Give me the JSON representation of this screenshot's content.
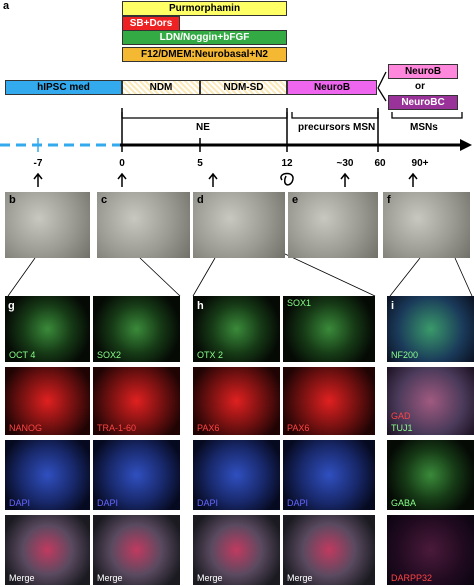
{
  "panel_a": {
    "label": "a",
    "treatments": [
      "Purmorphamin",
      "SB+Dors",
      "LDN/Noggin+bFGF",
      "F12/DMEM:Neurobasal+N2"
    ],
    "stages": [
      "hIPSC med",
      "NDM",
      "NDM-SD",
      "NeuroB"
    ],
    "alternatives": [
      "NeuroB",
      "or",
      "NeuroBC"
    ],
    "phases": [
      "NE",
      "precursors MSN",
      "MSNs"
    ],
    "timeline": [
      "-7",
      "0",
      "5",
      "12",
      "~30",
      "60",
      "90+"
    ]
  },
  "micrographs": [
    "b",
    "c",
    "d",
    "e",
    "f"
  ],
  "panels": [
    {
      "label": "g",
      "images": [
        "OCT 4",
        "SOX2",
        "NANOG",
        "TRA-1-60",
        "DAPI",
        "DAPI",
        "Merge",
        "Merge"
      ]
    },
    {
      "label": "h",
      "images": [
        "OTX 2",
        "SOX1",
        "PAX6",
        "PAX6",
        "DAPI",
        "DAPI",
        "Merge",
        "Merge"
      ]
    },
    {
      "label": "i",
      "images": [
        "NF200",
        "GAD",
        "TUJ1",
        "GABA",
        "DARPP32"
      ]
    }
  ]
}
